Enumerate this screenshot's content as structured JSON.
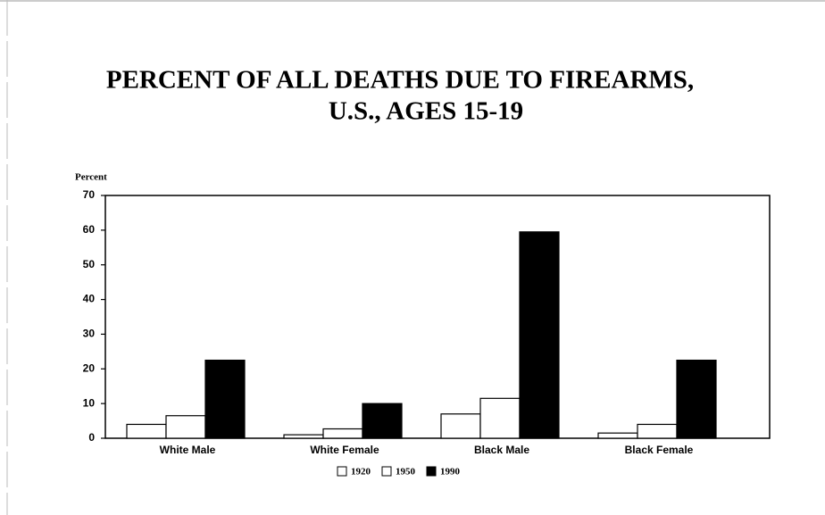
{
  "chart_data": {
    "type": "bar",
    "title": [
      "PERCENT OF ALL DEATHS DUE TO FIREARMS,",
      "U.S., AGES 15-19"
    ],
    "y_label": "Percent",
    "categories": [
      "White Male",
      "White Female",
      "Black Male",
      "Black Female"
    ],
    "series": [
      {
        "name": "1920",
        "color": "#ffffff",
        "values": [
          4,
          1,
          7,
          1.5
        ]
      },
      {
        "name": "1950",
        "color": "#ffffff",
        "values": [
          6.5,
          2.7,
          11.5,
          4
        ]
      },
      {
        "name": "1990",
        "color": "#000000",
        "values": [
          22.5,
          10,
          59.5,
          22.5
        ]
      }
    ],
    "ylim": [
      0,
      70
    ],
    "yticks": [
      0,
      10,
      20,
      30,
      40,
      50,
      60,
      70
    ]
  }
}
